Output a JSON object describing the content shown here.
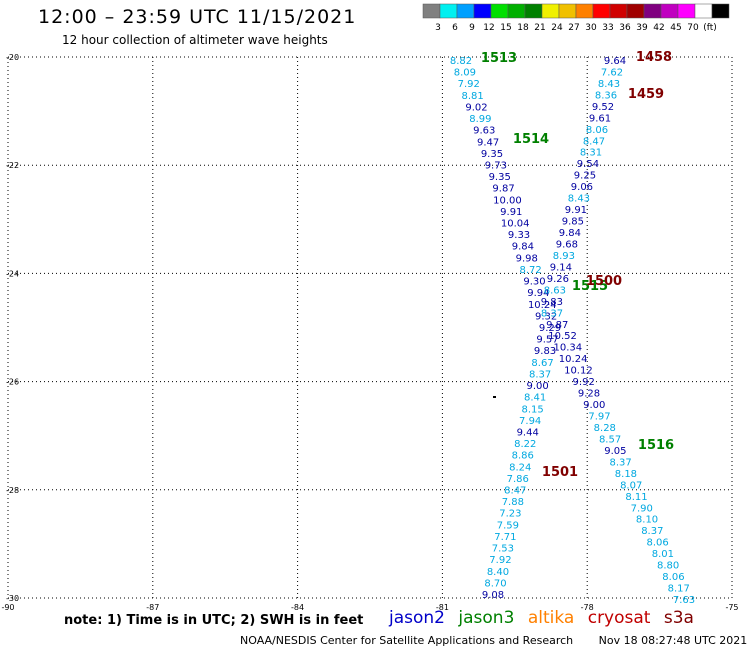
{
  "header": {
    "title": "12:00 – 23:59 UTC 11/15/2021",
    "subtitle": "12 hour collection of altimeter wave heights"
  },
  "color_scale": {
    "colors": [
      "#808080",
      "#00f0f0",
      "#00a0ff",
      "#0000ff",
      "#00e000",
      "#00b000",
      "#008000",
      "#f0f000",
      "#f0c000",
      "#ff8000",
      "#ff0000",
      "#d00000",
      "#a00000",
      "#800080",
      "#c000c0",
      "#ff00ff",
      "#ffffff",
      "#000000"
    ],
    "labels": [
      "3",
      "6",
      "9",
      "12",
      "15",
      "18",
      "21",
      "24",
      "27",
      "30",
      "33",
      "36",
      "39",
      "42",
      "45",
      "70",
      "(ft)"
    ]
  },
  "axes": {
    "lat_labels": [
      "-20",
      "-22",
      "-24",
      "-26",
      "-28",
      "-30"
    ],
    "lon_labels": [
      "-90",
      "-87",
      "-84",
      "-81",
      "-78",
      "-75"
    ]
  },
  "satellite_colors": {
    "jason2": "#0000c8",
    "jason3": "#008000",
    "altika": "#ff8000",
    "cryosat": "#c00000",
    "s3a": "#800000",
    "track_light": "#00a8e0",
    "track_dark": "#0000a0"
  },
  "tracks": [
    {
      "sat": "jason3",
      "time": "1513",
      "values": [
        "8.82",
        "8.09",
        "7.92",
        "8.81",
        "9.02",
        "8.99",
        "9.63",
        "9.47",
        "9.35",
        "9.73",
        "9.35",
        "9.87",
        "10.00",
        "9.91",
        "10.04",
        "9.33",
        "9.84",
        "9.98",
        "8.72",
        "9.30",
        "9.94",
        "10.24",
        "9.32",
        "9.29",
        "9.57",
        "9.83",
        "8.67",
        "8.37",
        "9.00",
        "8.41",
        "8.15",
        "7.94",
        "9.44",
        "8.22",
        "8.86",
        "8.24",
        "7.86",
        "8.47",
        "7.88",
        "7.23",
        "7.59",
        "7.71",
        "7.53",
        "7.92",
        "8.40",
        "8.70",
        "9.08"
      ]
    },
    {
      "sat": "s3a",
      "time": "1458",
      "values": [
        "9.64",
        "7.62",
        "8.43",
        "8.36",
        "9.52",
        "9.61",
        "8.06",
        "8.47",
        "8.31",
        "9.54",
        "9.25",
        "9.06",
        "8.43",
        "9.91",
        "9.85",
        "9.84",
        "9.68",
        "8.93",
        "9.14",
        "9.26",
        "8.63",
        "9.83",
        "8.37",
        "9.87",
        "10.52",
        "10.34",
        "10.24",
        "10.12",
        "9.92",
        "9.28",
        "9.00",
        "7.97",
        "8.28",
        "8.57",
        "9.05",
        "8.37",
        "8.18",
        "8.07",
        "8.11",
        "7.90",
        "8.10",
        "8.37",
        "8.06",
        "8.01",
        "8.80",
        "8.06",
        "8.17",
        "7.63"
      ]
    }
  ],
  "time_labels": [
    {
      "text": "1513",
      "sat": "jason3"
    },
    {
      "text": "1514",
      "sat": "jason3"
    },
    {
      "text": "1515",
      "sat": "jason3"
    },
    {
      "text": "1516",
      "sat": "jason3"
    },
    {
      "text": "1458",
      "sat": "s3a"
    },
    {
      "text": "1459",
      "sat": "s3a"
    },
    {
      "text": "1500",
      "sat": "s3a"
    },
    {
      "text": "1501",
      "sat": "s3a"
    }
  ],
  "note": "note: 1) Time is in UTC; 2) SWH is in feet",
  "satellites": [
    {
      "label": "jason2",
      "color": "#0000c8"
    },
    {
      "label": "jason3",
      "color": "#008000"
    },
    {
      "label": "altika",
      "color": "#ff8000"
    },
    {
      "label": "cryosat",
      "color": "#c00000"
    },
    {
      "label": "s3a",
      "color": "#800000"
    }
  ],
  "footer": {
    "credit": "NOAA/NESDIS Center for Satellite Applications and Research",
    "timestamp": "Nov 18 08:27:48 UTC 2021"
  }
}
